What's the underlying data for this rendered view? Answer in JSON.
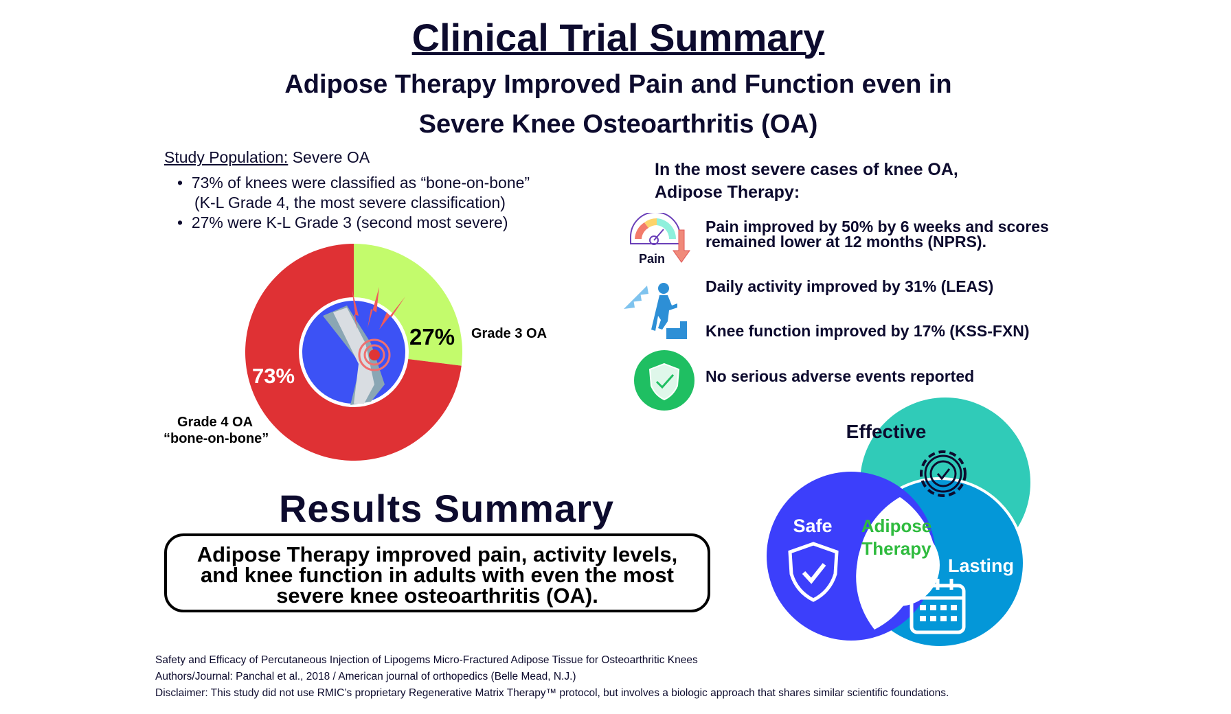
{
  "header": {
    "title": "Clinical Trial Summary",
    "subtitle_line1": "Adipose Therapy Improved Pain and Function even in",
    "subtitle_line2": "Severe Knee Osteoarthritis (OA)"
  },
  "population": {
    "label": "Study Population:",
    "value": "Severe OA",
    "bullets": [
      "73% of knees were classified as “bone-on-bone”",
      "(K-L Grade 4, the most severe classification)",
      "27% were K-L Grade 3 (second most severe)"
    ]
  },
  "chart_data": {
    "type": "pie",
    "style": "donut",
    "categories": [
      "Grade 3 OA",
      "Grade 4 OA “bone-on-bone”"
    ],
    "values": [
      27,
      73
    ],
    "labels": [
      "27%",
      "73%"
    ],
    "legend_labels": [
      "Grade 3 OA",
      "Grade 4 OA",
      "“bone-on-bone”"
    ],
    "colors": [
      "#c3fb6c",
      "#df3134"
    ]
  },
  "findings": {
    "heading_line1": "In the most severe cases of knee OA,",
    "heading_line2": "Adipose Therapy:",
    "pain_icon_label": "Pain",
    "items": [
      "Pain improved by 50% by 6 weeks and scores",
      "remained lower at 12 months (NPRS).",
      "Daily activity improved by 31% (LEAS)",
      "Knee function improved by 17% (KSS-FXN)",
      "No serious adverse events reported"
    ]
  },
  "venn": {
    "effective": "Effective",
    "safe": "Safe",
    "lasting": "Lasting",
    "center_line1": "Adipose",
    "center_line2": "Therapy",
    "colors": {
      "effective": "#30cbb8",
      "safe": "#3c3ffb",
      "lasting": "#0497d8",
      "center_text": "#2fbb3e"
    }
  },
  "results": {
    "title": "Results Summary",
    "lines": [
      "Adipose Therapy improved pain, activity levels,",
      "and knee function in adults with even the most",
      "severe knee osteoarthritis (OA)."
    ]
  },
  "footer": {
    "study": "Safety and Efficacy of Percutaneous Injection of Lipogems Micro-Fractured Adipose Tissue for Osteoarthritic Knees",
    "authors": "Authors/Journal: Panchal et al., 2018 / American journal of orthopedics (Belle Mead, N.J.)",
    "disclaimer": "Disclaimer: This study did not use RMIC’s proprietary Regenerative Matrix Therapy™ protocol, but involves a biologic approach that shares similar scientific foundations."
  }
}
